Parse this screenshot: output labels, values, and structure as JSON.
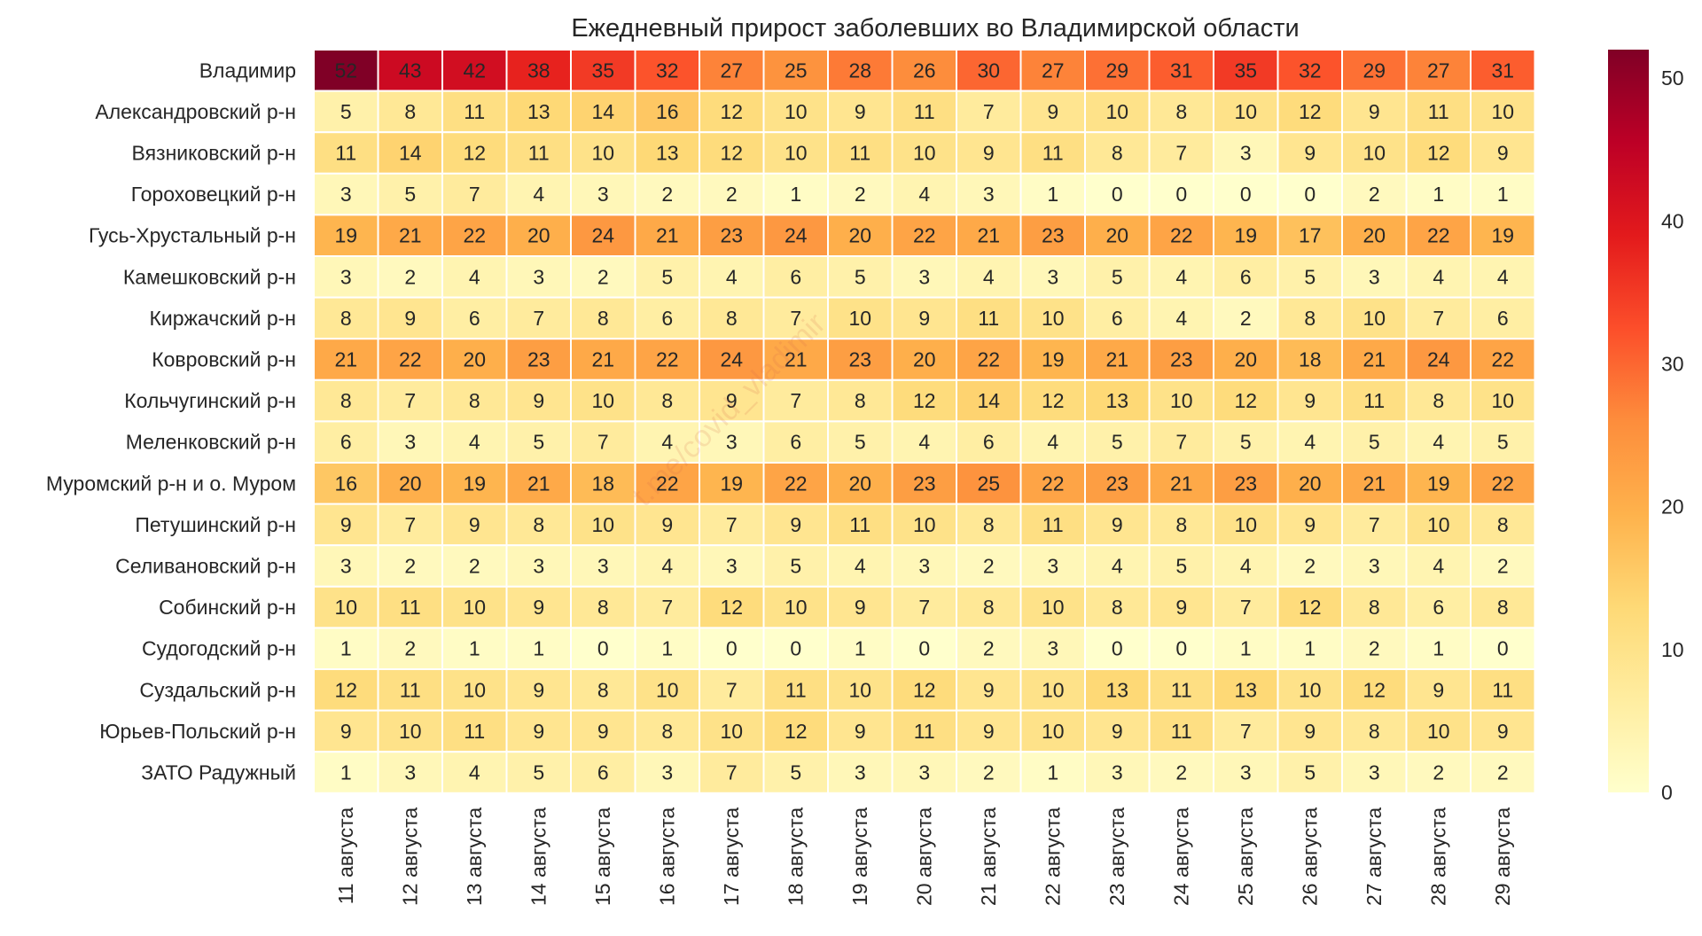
{
  "chart_data": {
    "type": "heatmap",
    "title": "Ежедневный прирост заболевших во Владимирской области",
    "xlabel": "",
    "ylabel": "",
    "watermark": "t.me/covid_vladimir",
    "x": [
      "11 августа",
      "12 августа",
      "13 августа",
      "14 августа",
      "15 августа",
      "16 августа",
      "17 августа",
      "18 августа",
      "19 августа",
      "20 августа",
      "21 августа",
      "22 августа",
      "23 августа",
      "24 августа",
      "25 августа",
      "26 августа",
      "27 августа",
      "28 августа",
      "29 августа"
    ],
    "y": [
      "Владимир",
      "Александровский р-н",
      "Вязниковский р-н",
      "Гороховецкий р-н",
      "Гусь-Хрустальный р-н",
      "Камешковский р-н",
      "Киржачский р-н",
      "Ковровский р-н",
      "Кольчугинский р-н",
      "Меленковский р-н",
      "Муромский р-н и о. Муром",
      "Петушинский р-н",
      "Селивановский р-н",
      "Собинский р-н",
      "Судогодский р-н",
      "Суздальский р-н",
      "Юрьев-Польский р-н",
      "ЗАТО Радужный"
    ],
    "values": [
      [
        52,
        43,
        42,
        38,
        35,
        32,
        27,
        25,
        28,
        26,
        30,
        27,
        29,
        31,
        35,
        32,
        29,
        27,
        31
      ],
      [
        5,
        8,
        11,
        13,
        14,
        16,
        12,
        10,
        9,
        11,
        7,
        9,
        10,
        8,
        10,
        12,
        9,
        11,
        10
      ],
      [
        11,
        14,
        12,
        11,
        10,
        13,
        12,
        10,
        11,
        10,
        9,
        11,
        8,
        7,
        3,
        9,
        10,
        12,
        9
      ],
      [
        3,
        5,
        7,
        4,
        3,
        2,
        2,
        1,
        2,
        4,
        3,
        1,
        0,
        0,
        0,
        0,
        2,
        1,
        1
      ],
      [
        19,
        21,
        22,
        20,
        24,
        21,
        23,
        24,
        20,
        22,
        21,
        23,
        20,
        22,
        19,
        17,
        20,
        22,
        19
      ],
      [
        3,
        2,
        4,
        3,
        2,
        5,
        4,
        6,
        5,
        3,
        4,
        3,
        5,
        4,
        6,
        5,
        3,
        4,
        4
      ],
      [
        8,
        9,
        6,
        7,
        8,
        6,
        8,
        7,
        10,
        9,
        11,
        10,
        6,
        4,
        2,
        8,
        10,
        7,
        6
      ],
      [
        21,
        22,
        20,
        23,
        21,
        22,
        24,
        21,
        23,
        20,
        22,
        19,
        21,
        23,
        20,
        18,
        21,
        24,
        22
      ],
      [
        8,
        7,
        8,
        9,
        10,
        8,
        9,
        7,
        8,
        12,
        14,
        12,
        13,
        10,
        12,
        9,
        11,
        8,
        10
      ],
      [
        6,
        3,
        4,
        5,
        7,
        4,
        3,
        6,
        5,
        4,
        6,
        4,
        5,
        7,
        5,
        4,
        5,
        4,
        5
      ],
      [
        16,
        20,
        19,
        21,
        18,
        22,
        19,
        22,
        20,
        23,
        25,
        22,
        23,
        21,
        23,
        20,
        21,
        19,
        22
      ],
      [
        9,
        7,
        9,
        8,
        10,
        9,
        7,
        9,
        11,
        10,
        8,
        11,
        9,
        8,
        10,
        9,
        7,
        10,
        8
      ],
      [
        3,
        2,
        2,
        3,
        3,
        4,
        3,
        5,
        4,
        3,
        2,
        3,
        4,
        5,
        4,
        2,
        3,
        4,
        2
      ],
      [
        10,
        11,
        10,
        9,
        8,
        7,
        12,
        10,
        9,
        7,
        8,
        10,
        8,
        9,
        7,
        12,
        8,
        6,
        8
      ],
      [
        1,
        2,
        1,
        1,
        0,
        1,
        0,
        0,
        1,
        0,
        2,
        3,
        0,
        0,
        1,
        1,
        2,
        1,
        0
      ],
      [
        12,
        11,
        10,
        9,
        8,
        10,
        7,
        11,
        10,
        12,
        9,
        10,
        13,
        11,
        13,
        10,
        12,
        9,
        11
      ],
      [
        9,
        10,
        11,
        9,
        9,
        8,
        10,
        12,
        9,
        11,
        9,
        10,
        9,
        11,
        7,
        9,
        8,
        10,
        9
      ],
      [
        1,
        3,
        4,
        5,
        6,
        3,
        7,
        5,
        3,
        3,
        2,
        1,
        3,
        2,
        3,
        5,
        3,
        2,
        2
      ]
    ],
    "colorbar": {
      "min": 0,
      "max": 52,
      "ticks": [
        0,
        10,
        20,
        30,
        40,
        50
      ]
    },
    "colormap": "YlOrRd",
    "colormap_stops": [
      "#ffffcc",
      "#ffeda0",
      "#fed976",
      "#feb24c",
      "#fd8d3c",
      "#fc4e2a",
      "#e31a1c",
      "#bd0026",
      "#800026"
    ],
    "grid": false,
    "legend": "colorbar-right"
  }
}
